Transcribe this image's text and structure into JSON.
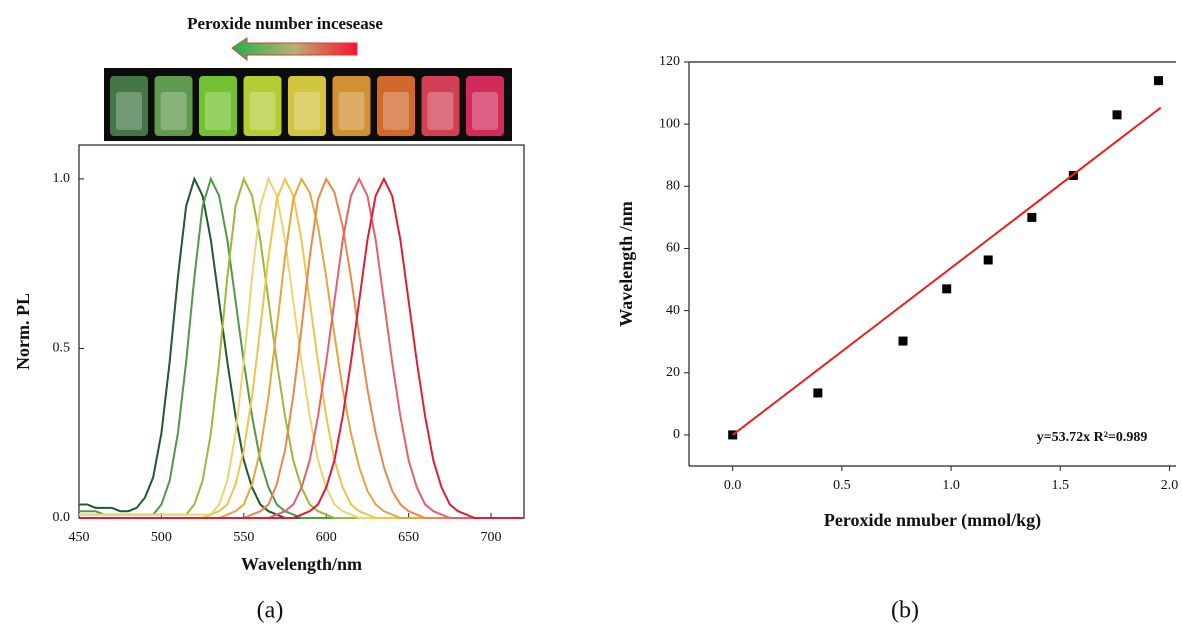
{
  "chart_data": [
    {
      "type": "line",
      "label": "(a)",
      "title": "Peroxide number incesease",
      "xlabel": "Wavelength/nm",
      "ylabel": "Norm. PL",
      "xlim": [
        450,
        720
      ],
      "ylim": [
        0,
        1.1
      ],
      "xticks": [
        450,
        500,
        550,
        600,
        650,
        700
      ],
      "yticks": [
        {
          "value": 0,
          "label": "0.0"
        },
        {
          "value": 0.5,
          "label": "0.5"
        },
        {
          "value": 1,
          "label": "1.0"
        }
      ],
      "x": [
        450,
        455,
        460,
        465,
        470,
        475,
        480,
        485,
        490,
        495,
        500,
        505,
        510,
        515,
        520,
        525,
        530,
        535,
        540,
        545,
        550,
        555,
        560,
        565,
        570,
        575,
        580,
        585,
        590,
        595,
        600,
        605,
        610,
        615,
        620,
        625,
        630,
        635,
        640,
        645,
        650,
        655,
        660,
        665,
        670,
        675,
        680,
        685,
        690,
        695,
        700,
        705,
        710,
        715,
        720
      ],
      "series": [
        {
          "color": "#1f5a2c",
          "values": [
            0.04,
            0.04,
            0.03,
            0.03,
            0.03,
            0.02,
            0.02,
            0.03,
            0.06,
            0.12,
            0.25,
            0.46,
            0.71,
            0.92,
            1,
            0.95,
            0.82,
            0.64,
            0.46,
            0.3,
            0.17,
            0.09,
            0.04,
            0.02,
            0.01,
            0,
            0,
            0,
            0,
            0,
            0,
            0,
            0,
            0,
            0,
            0,
            0,
            0,
            0,
            0,
            0,
            0,
            0,
            0,
            0,
            0,
            0,
            0,
            0,
            0,
            0,
            0,
            0,
            0,
            0
          ]
        },
        {
          "color": "#4f9a45",
          "values": [
            0.02,
            0.02,
            0.02,
            0.01,
            0.01,
            0.01,
            0.01,
            0.01,
            0.01,
            0.01,
            0.04,
            0.11,
            0.25,
            0.46,
            0.71,
            0.92,
            1,
            0.95,
            0.82,
            0.64,
            0.46,
            0.3,
            0.17,
            0.09,
            0.04,
            0.02,
            0.01,
            0,
            0,
            0,
            0,
            0,
            0,
            0,
            0,
            0,
            0,
            0,
            0,
            0,
            0,
            0,
            0,
            0,
            0,
            0,
            0,
            0,
            0,
            0,
            0,
            0,
            0,
            0,
            0
          ]
        },
        {
          "color": "#9bb83a",
          "values": [
            0.01,
            0.01,
            0.01,
            0.01,
            0.01,
            0.01,
            0.01,
            0.01,
            0.01,
            0.01,
            0.01,
            0.01,
            0.01,
            0.01,
            0.04,
            0.11,
            0.25,
            0.46,
            0.71,
            0.92,
            1,
            0.95,
            0.82,
            0.64,
            0.46,
            0.3,
            0.17,
            0.09,
            0.04,
            0.02,
            0.01,
            0,
            0,
            0,
            0,
            0,
            0,
            0,
            0,
            0,
            0,
            0,
            0,
            0,
            0,
            0,
            0,
            0,
            0,
            0,
            0,
            0,
            0,
            0,
            0
          ]
        },
        {
          "color": "#ecd472",
          "values": [
            0.01,
            0.01,
            0.01,
            0.01,
            0.01,
            0.01,
            0.01,
            0.01,
            0.01,
            0.01,
            0.01,
            0.01,
            0.01,
            0.01,
            0.01,
            0.01,
            0.01,
            0.04,
            0.11,
            0.25,
            0.46,
            0.71,
            0.92,
            1,
            0.95,
            0.82,
            0.64,
            0.46,
            0.3,
            0.17,
            0.09,
            0.04,
            0.02,
            0.01,
            0,
            0,
            0,
            0,
            0,
            0,
            0,
            0,
            0,
            0,
            0,
            0,
            0,
            0,
            0,
            0,
            0,
            0,
            0,
            0,
            0
          ]
        },
        {
          "color": "#eec44a",
          "values": [
            0,
            0,
            0,
            0,
            0,
            0,
            0,
            0,
            0,
            0,
            0,
            0,
            0,
            0,
            0,
            0,
            0.01,
            0.02,
            0.04,
            0.1,
            0.2,
            0.36,
            0.56,
            0.77,
            0.94,
            1,
            0.95,
            0.82,
            0.64,
            0.46,
            0.3,
            0.17,
            0.09,
            0.04,
            0.02,
            0.01,
            0,
            0,
            0,
            0,
            0,
            0,
            0,
            0,
            0,
            0,
            0,
            0,
            0,
            0,
            0,
            0,
            0,
            0,
            0
          ]
        },
        {
          "color": "#e3a63c",
          "values": [
            0,
            0,
            0,
            0,
            0,
            0,
            0,
            0,
            0,
            0,
            0,
            0,
            0,
            0,
            0,
            0,
            0,
            0,
            0.01,
            0.02,
            0.04,
            0.1,
            0.2,
            0.36,
            0.56,
            0.77,
            0.94,
            1,
            0.96,
            0.86,
            0.71,
            0.54,
            0.38,
            0.25,
            0.15,
            0.08,
            0.04,
            0.02,
            0.01,
            0,
            0,
            0,
            0,
            0,
            0,
            0,
            0,
            0,
            0,
            0,
            0,
            0,
            0,
            0,
            0
          ]
        },
        {
          "color": "#e7884a",
          "values": [
            0,
            0,
            0,
            0,
            0,
            0,
            0,
            0,
            0,
            0,
            0,
            0,
            0,
            0,
            0,
            0,
            0,
            0,
            0,
            0,
            0,
            0.01,
            0.02,
            0.04,
            0.1,
            0.2,
            0.36,
            0.56,
            0.77,
            0.94,
            1,
            0.96,
            0.86,
            0.71,
            0.54,
            0.38,
            0.25,
            0.15,
            0.08,
            0.04,
            0.02,
            0.01,
            0,
            0,
            0,
            0,
            0,
            0,
            0,
            0,
            0,
            0,
            0,
            0,
            0
          ]
        },
        {
          "color": "#e6606a",
          "values": [
            0,
            0,
            0,
            0,
            0,
            0,
            0,
            0,
            0,
            0,
            0,
            0,
            0,
            0,
            0,
            0,
            0,
            0,
            0,
            0,
            0,
            0,
            0,
            0,
            0.01,
            0.02,
            0.04,
            0.09,
            0.17,
            0.3,
            0.46,
            0.64,
            0.82,
            0.95,
            1,
            0.95,
            0.82,
            0.64,
            0.46,
            0.3,
            0.17,
            0.09,
            0.04,
            0.02,
            0.01,
            0,
            0,
            0,
            0,
            0,
            0,
            0,
            0,
            0,
            0
          ]
        },
        {
          "color": "#dc1f35",
          "values": [
            0,
            0,
            0,
            0,
            0,
            0,
            0,
            0,
            0,
            0,
            0,
            0,
            0,
            0,
            0,
            0,
            0,
            0,
            0,
            0,
            0,
            0,
            0,
            0,
            0,
            0,
            0,
            0.01,
            0.02,
            0.04,
            0.09,
            0.17,
            0.3,
            0.46,
            0.64,
            0.82,
            0.95,
            1,
            0.95,
            0.82,
            0.64,
            0.46,
            0.3,
            0.17,
            0.09,
            0.04,
            0.02,
            0.01,
            0,
            0,
            0,
            0,
            0,
            0,
            0
          ]
        }
      ]
    },
    {
      "type": "scatter",
      "label": "(b)",
      "xlabel": "Peroxide nmuber (mmol/kg)",
      "ylabel": "Wavelength /nm",
      "annotation": "y=53.72x   R²=0.989",
      "xlim": [
        -0.2,
        2.03
      ],
      "ylim": [
        -10,
        120
      ],
      "xticks": [
        {
          "value": 0,
          "label": "0.0"
        },
        {
          "value": 0.5,
          "label": "0.5"
        },
        {
          "value": 1,
          "label": "1.0"
        },
        {
          "value": 1.5,
          "label": "1.5"
        },
        {
          "value": 2,
          "label": "2.0"
        }
      ],
      "yticks": [
        0,
        20,
        40,
        60,
        80,
        100,
        120
      ],
      "x": [
        0,
        0.39,
        0.78,
        0.98,
        1.17,
        1.37,
        1.56,
        1.76,
        1.95
      ],
      "series": [
        {
          "color": "#000000",
          "values": [
            0,
            13.5,
            30.2,
            47,
            56.3,
            70,
            83.5,
            103,
            114
          ]
        },
        {
          "type": "line",
          "color": "#e8201e",
          "x": [
            0,
            1.96
          ],
          "values": [
            0,
            105.3
          ]
        }
      ]
    }
  ]
}
